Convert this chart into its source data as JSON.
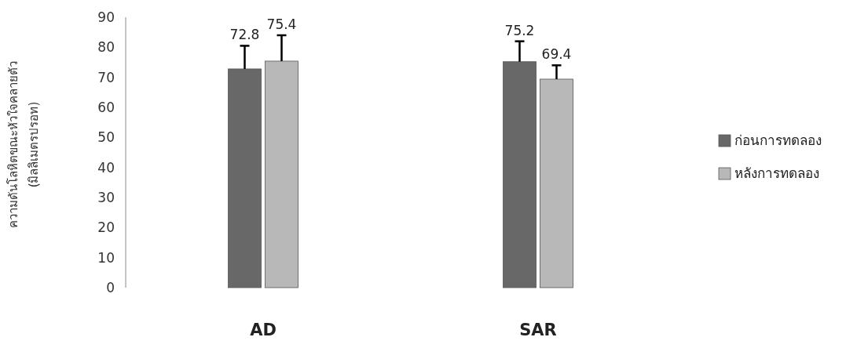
{
  "chart_data": {
    "type": "bar",
    "ylabel": "ความดันโลหิตขณะหัวใจคลายตัว\n(มิลลิเมตรปรอท)",
    "categories": [
      "AD",
      "SAR"
    ],
    "series": [
      {
        "name": "ก่อนการทดลอง",
        "color": "#686868",
        "values": [
          72.8,
          75.2
        ],
        "errors": [
          [
            72.8,
            80.5
          ],
          [
            75.2,
            82
          ]
        ]
      },
      {
        "name": "หลังการทดลอง",
        "color": "#b8b8b8",
        "values": [
          75.4,
          69.4
        ],
        "errors": [
          [
            75.4,
            84
          ],
          [
            69.4,
            74
          ]
        ]
      }
    ],
    "ylim": [
      0,
      90
    ],
    "yticks": [
      0,
      10,
      20,
      30,
      40,
      50,
      60,
      70,
      80,
      90
    ],
    "data_labels": true,
    "legend": "right",
    "grid": false
  }
}
